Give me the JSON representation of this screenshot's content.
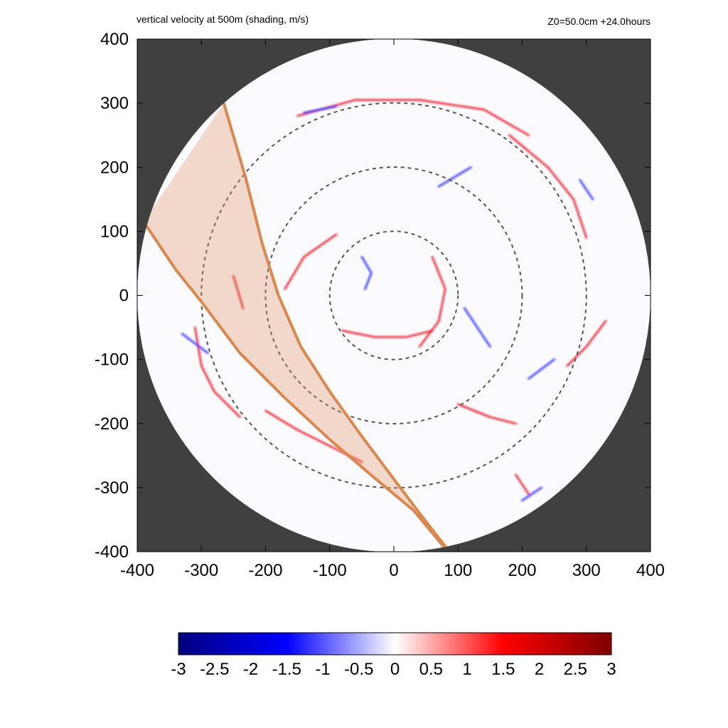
{
  "header": {
    "left_title": "vertical velocity at 500m (shading, m/s)",
    "right_title": "Z0=50.0cm  +24.0hours"
  },
  "chart_data": {
    "type": "heatmap",
    "title": "vertical velocity at 500m (shading, m/s)",
    "annotation": "Z0=50.0cm  +24.0hours",
    "xlabel": "",
    "ylabel": "",
    "xlim": [
      -400,
      400
    ],
    "ylim": [
      -400,
      400
    ],
    "x_ticks": [
      -400,
      -300,
      -200,
      -100,
      0,
      100,
      200,
      300,
      400
    ],
    "y_ticks": [
      -400,
      -300,
      -200,
      -100,
      0,
      100,
      200,
      300,
      400
    ],
    "x_tick_labels": [
      "-400",
      "-300",
      "-200",
      "-100",
      "0",
      "100",
      "200",
      "300",
      "400"
    ],
    "y_tick_labels": [
      "400",
      "300",
      "200",
      "100",
      "0",
      "-100",
      "-200",
      "-300",
      "-400"
    ],
    "domain": {
      "shape": "circle",
      "center": [
        0,
        0
      ],
      "radius": 400,
      "outside_color": "#404040"
    },
    "reference_circles": {
      "radii": [
        100,
        200,
        300
      ],
      "style": "dashed",
      "color": "#555555"
    },
    "colorbar": {
      "min": -3,
      "max": 3,
      "ticks": [
        -3,
        -2.5,
        -2,
        -1.5,
        -1,
        -0.5,
        0,
        0.5,
        1,
        1.5,
        2,
        2.5,
        3
      ],
      "tick_labels": [
        "-3",
        "-2.5",
        "-2",
        "-1.5",
        "-1",
        "-0.5",
        "0",
        "0.5",
        "1",
        "1.5",
        "2",
        "2.5",
        "3"
      ],
      "colors": [
        "#00007f",
        "#0000ff",
        "#ffffff",
        "#ff0000",
        "#7f0000"
      ]
    },
    "highlight_band": {
      "color": "#d98850",
      "fill_opacity": 0.3,
      "left_edge": [
        [
          -390,
          115
        ],
        [
          -340,
          40
        ],
        [
          -300,
          -10
        ],
        [
          -240,
          -90
        ],
        [
          -170,
          -160
        ],
        [
          -100,
          -225
        ],
        [
          -30,
          -285
        ],
        [
          30,
          -335
        ],
        [
          80,
          -395
        ]
      ],
      "right_edge": [
        [
          -265,
          300
        ],
        [
          -230,
          180
        ],
        [
          -205,
          80
        ],
        [
          -180,
          0
        ],
        [
          -145,
          -80
        ],
        [
          -100,
          -150
        ],
        [
          -50,
          -220
        ],
        [
          10,
          -300
        ],
        [
          40,
          -340
        ],
        [
          85,
          -398
        ]
      ]
    },
    "features": [
      {
        "sign": "positive",
        "path": [
          [
            -200,
            -180
          ],
          [
            -150,
            -210
          ],
          [
            -100,
            -235
          ],
          [
            -50,
            -260
          ]
        ]
      },
      {
        "sign": "positive",
        "path": [
          [
            -310,
            -50
          ],
          [
            -300,
            -110
          ],
          [
            -280,
            -150
          ],
          [
            -240,
            -190
          ]
        ]
      },
      {
        "sign": "positive",
        "path": [
          [
            -150,
            280
          ],
          [
            -60,
            305
          ],
          [
            40,
            305
          ],
          [
            140,
            290
          ],
          [
            210,
            250
          ]
        ]
      },
      {
        "sign": "positive",
        "path": [
          [
            180,
            250
          ],
          [
            240,
            200
          ],
          [
            280,
            150
          ],
          [
            300,
            90
          ]
        ]
      },
      {
        "sign": "positive",
        "path": [
          [
            60,
            60
          ],
          [
            80,
            10
          ],
          [
            70,
            -40
          ],
          [
            40,
            -80
          ]
        ]
      },
      {
        "sign": "positive",
        "path": [
          [
            -80,
            -55
          ],
          [
            -30,
            -65
          ],
          [
            20,
            -65
          ],
          [
            60,
            -55
          ]
        ]
      },
      {
        "sign": "positive",
        "path": [
          [
            100,
            -170
          ],
          [
            150,
            -190
          ],
          [
            190,
            -200
          ]
        ]
      },
      {
        "sign": "positive",
        "path": [
          [
            -90,
            95
          ],
          [
            -140,
            60
          ],
          [
            -170,
            10
          ]
        ]
      },
      {
        "sign": "positive",
        "path": [
          [
            190,
            -280
          ],
          [
            210,
            -310
          ]
        ]
      },
      {
        "sign": "positive",
        "path": [
          [
            270,
            -110
          ],
          [
            300,
            -80
          ],
          [
            330,
            -40
          ]
        ]
      },
      {
        "sign": "positive",
        "path": [
          [
            -250,
            30
          ],
          [
            -235,
            -20
          ]
        ]
      },
      {
        "sign": "negative",
        "path": [
          [
            -50,
            60
          ],
          [
            -35,
            35
          ],
          [
            -45,
            10
          ]
        ]
      },
      {
        "sign": "negative",
        "path": [
          [
            -330,
            -60
          ],
          [
            -290,
            -90
          ]
        ]
      },
      {
        "sign": "negative",
        "path": [
          [
            -140,
            285
          ],
          [
            -90,
            295
          ]
        ]
      },
      {
        "sign": "negative",
        "path": [
          [
            70,
            170
          ],
          [
            120,
            200
          ]
        ]
      },
      {
        "sign": "negative",
        "path": [
          [
            110,
            -20
          ],
          [
            130,
            -50
          ],
          [
            150,
            -80
          ]
        ]
      },
      {
        "sign": "negative",
        "path": [
          [
            200,
            -320
          ],
          [
            230,
            -300
          ]
        ]
      },
      {
        "sign": "negative",
        "path": [
          [
            290,
            180
          ],
          [
            310,
            150
          ]
        ]
      },
      {
        "sign": "negative",
        "path": [
          [
            210,
            -130
          ],
          [
            250,
            -100
          ]
        ]
      }
    ]
  },
  "colors": {
    "background": "#ffffff",
    "outside_domain": "#404040",
    "band": "#d98850",
    "positive": "#e8000a",
    "negative": "#1a1aff"
  }
}
